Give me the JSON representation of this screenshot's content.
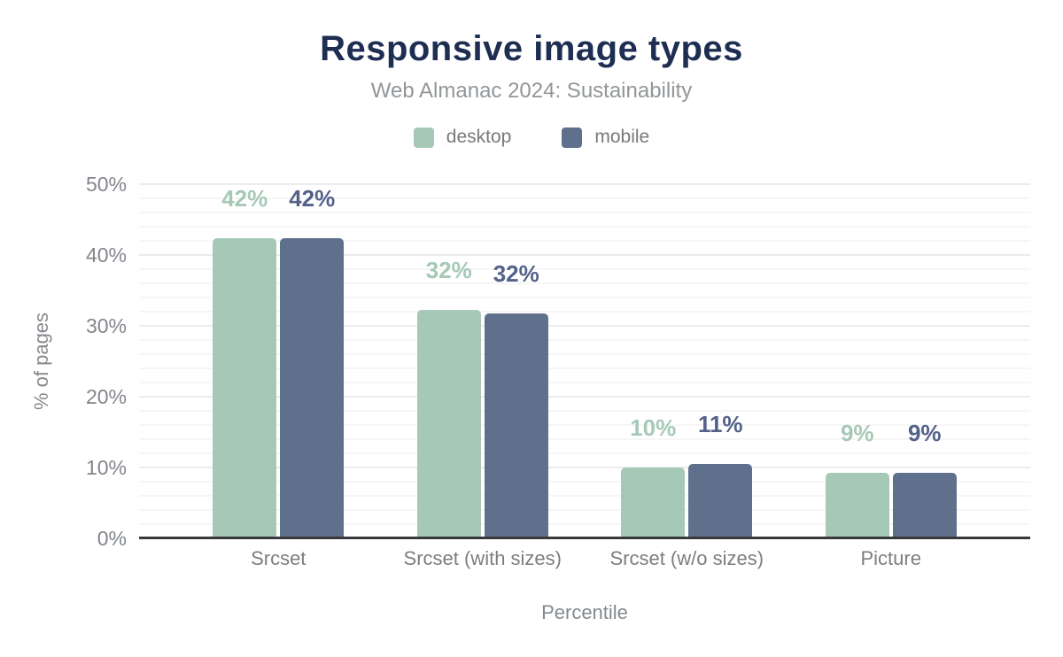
{
  "chart_data": {
    "type": "bar",
    "title": "Responsive image types",
    "subtitle": "Web Almanac 2024: Sustainability",
    "xlabel": "Percentile",
    "ylabel": "% of pages",
    "categories": [
      "Srcset",
      "Srcset (with sizes)",
      "Srcset (w/o sizes)",
      "Picture"
    ],
    "series": [
      {
        "name": "desktop",
        "color": "#a6c9b7",
        "label_color": "#a6c9b7",
        "values": [
          42.4,
          32.3,
          10.0,
          9.2
        ],
        "labels": [
          "42%",
          "32%",
          "10%",
          "9%"
        ]
      },
      {
        "name": "mobile",
        "color": "#5f708c",
        "label_color": "#54628a",
        "values": [
          42.4,
          31.8,
          10.5,
          9.2
        ],
        "labels": [
          "42%",
          "32%",
          "11%",
          "9%"
        ]
      }
    ],
    "ylim": [
      0,
      50
    ],
    "yticks": [
      "0%",
      "10%",
      "20%",
      "30%",
      "40%",
      "50%"
    ],
    "grid": "horizontal, minor every 2%, major every 10%",
    "legend_position": "top"
  }
}
